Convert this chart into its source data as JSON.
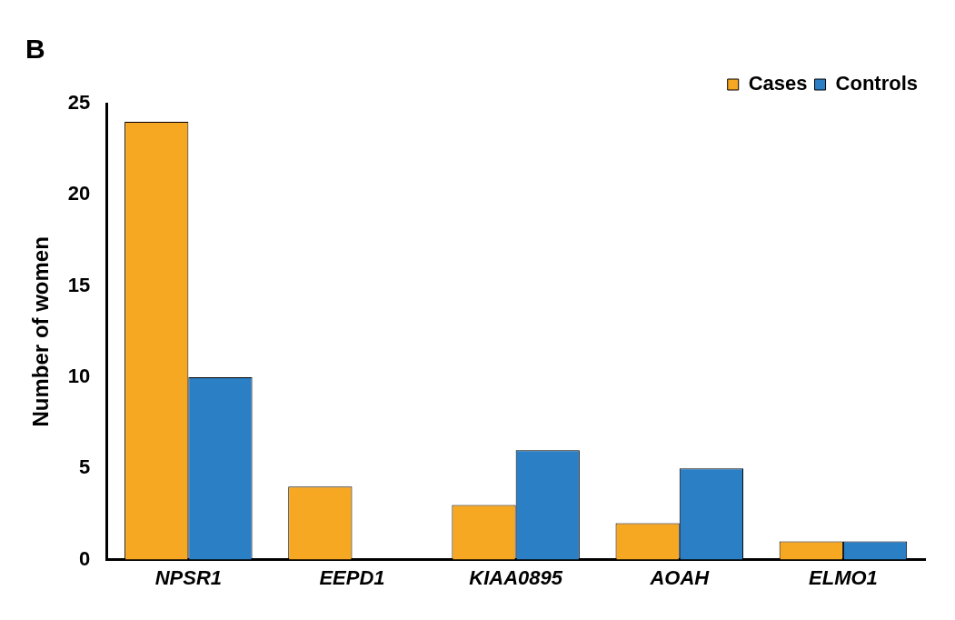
{
  "chart_data": {
    "type": "bar",
    "title": "B",
    "ylabel": "Number of women",
    "categories": [
      "NPSR1",
      "EEPD1",
      "KIAA0895",
      "AOAH",
      "ELMO1"
    ],
    "series": [
      {
        "name": "Cases",
        "color": "#f7a823",
        "values": [
          24,
          4,
          3,
          2,
          1
        ]
      },
      {
        "name": "Controls",
        "color": "#2a7fc5",
        "values": [
          10,
          0,
          6,
          5,
          1
        ]
      }
    ],
    "ylim": [
      0,
      25
    ],
    "yticks": [
      0,
      5,
      10,
      15,
      20,
      25
    ],
    "grid": false,
    "legend": "top right"
  }
}
